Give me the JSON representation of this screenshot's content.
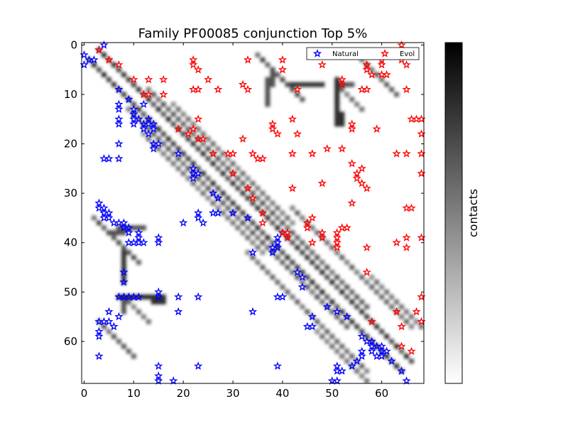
{
  "chart_data": {
    "type": "scatter",
    "title": "Family PF00085 conjunction Top 5%",
    "xlim": [
      -0.5,
      68.5
    ],
    "ylim": [
      68.5,
      -0.5
    ],
    "x_ticks": [
      0,
      10,
      20,
      30,
      40,
      50,
      60
    ],
    "y_ticks": [
      0,
      10,
      20,
      30,
      40,
      50,
      60
    ],
    "x_tick_labels": [
      "0",
      "10",
      "20",
      "30",
      "40",
      "50",
      "60"
    ],
    "y_tick_labels": [
      "0",
      "10",
      "20",
      "30",
      "40",
      "50",
      "60"
    ],
    "colorbar_label": "contacts",
    "colorbar_colors": [
      "#ffffff",
      "#000000"
    ],
    "legend_position": "top-right",
    "heatmap_bands": [
      {
        "i0": 1,
        "j0": 3,
        "len": 64,
        "intensity": 0.85
      },
      {
        "i0": 9,
        "j0": 13,
        "len": 45,
        "intensity": 0.7
      },
      {
        "i0": 12,
        "j0": 18,
        "len": 25,
        "intensity": 0.6
      },
      {
        "i0": 33,
        "j0": 42,
        "len": 25,
        "intensity": 0.65
      },
      {
        "i0": 2,
        "j0": 35,
        "len": 10,
        "intensity": 0.75
      },
      {
        "i0": 3,
        "j0": 56,
        "len": 8,
        "intensity": 0.7
      },
      {
        "i0": 47,
        "j0": 58,
        "len": 12,
        "intensity": 0.6
      },
      {
        "i0": 8,
        "j0": 51,
        "len": 6,
        "intensity": 0.6
      }
    ],
    "heatmap_rects": [
      {
        "i": 8,
        "j0": 42,
        "j1": 48,
        "intensity": 0.8
      },
      {
        "i": 8,
        "j0": 51,
        "j1": 54,
        "intensity": 0.7
      },
      {
        "i": 51,
        "j0": 7,
        "j1": 16,
        "intensity": 0.85
      },
      {
        "i": 52,
        "j0": 14,
        "j1": 16,
        "intensity": 0.85
      },
      {
        "i": 37,
        "j0": 7,
        "j1": 12,
        "intensity": 0.7
      },
      {
        "i": 38,
        "j0": 5,
        "j1": 8,
        "intensity": 0.7
      }
    ],
    "series": [
      {
        "name": "Natural",
        "color": "#0000ff",
        "points": [
          [
            0,
            2
          ],
          [
            1,
            3
          ],
          [
            0,
            4
          ],
          [
            3,
            1
          ],
          [
            2,
            3
          ],
          [
            4,
            0
          ],
          [
            7,
            9
          ],
          [
            7,
            12
          ],
          [
            7,
            13
          ],
          [
            7,
            15
          ],
          [
            7,
            16
          ],
          [
            7,
            20
          ],
          [
            7,
            23
          ],
          [
            4,
            23
          ],
          [
            5,
            23
          ],
          [
            9,
            11
          ],
          [
            10,
            13
          ],
          [
            10,
            14
          ],
          [
            10,
            15
          ],
          [
            10,
            16
          ],
          [
            11,
            15
          ],
          [
            12,
            12
          ],
          [
            12,
            16
          ],
          [
            12,
            17
          ],
          [
            13,
            15
          ],
          [
            13,
            16
          ],
          [
            14,
            16
          ],
          [
            14,
            17
          ],
          [
            13,
            18
          ],
          [
            14,
            20
          ],
          [
            14,
            21
          ],
          [
            15,
            20
          ],
          [
            19,
            22
          ],
          [
            22,
            25
          ],
          [
            22,
            26
          ],
          [
            22,
            27
          ],
          [
            23,
            26
          ],
          [
            26,
            30
          ],
          [
            27,
            31
          ],
          [
            23,
            34
          ],
          [
            23,
            35
          ],
          [
            24,
            36
          ],
          [
            26,
            34
          ],
          [
            27,
            34
          ],
          [
            30,
            34
          ],
          [
            33,
            35
          ],
          [
            34,
            42
          ],
          [
            20,
            36
          ],
          [
            3,
            32
          ],
          [
            3,
            33
          ],
          [
            4,
            33
          ],
          [
            4,
            34
          ],
          [
            4,
            35
          ],
          [
            5,
            34
          ],
          [
            5,
            35
          ],
          [
            6,
            36
          ],
          [
            7,
            36
          ],
          [
            8,
            36
          ],
          [
            8,
            37
          ],
          [
            9,
            37
          ],
          [
            9,
            38
          ],
          [
            9,
            40
          ],
          [
            10,
            40
          ],
          [
            11,
            38
          ],
          [
            11,
            39
          ],
          [
            11,
            40
          ],
          [
            12,
            40
          ],
          [
            15,
            39
          ],
          [
            15,
            40
          ],
          [
            38,
            41
          ],
          [
            38,
            42
          ],
          [
            39,
            39
          ],
          [
            39,
            40
          ],
          [
            39,
            41
          ],
          [
            40,
            38
          ],
          [
            8,
            46
          ],
          [
            8,
            48
          ],
          [
            8,
            51
          ],
          [
            9,
            51
          ],
          [
            10,
            51
          ],
          [
            11,
            51
          ],
          [
            15,
            50
          ],
          [
            15,
            51
          ],
          [
            7,
            51
          ],
          [
            19,
            51
          ],
          [
            23,
            51
          ],
          [
            19,
            54
          ],
          [
            3,
            56
          ],
          [
            4,
            56
          ],
          [
            5,
            54
          ],
          [
            5,
            56
          ],
          [
            6,
            57
          ],
          [
            7,
            55
          ],
          [
            3,
            58
          ],
          [
            3,
            59
          ],
          [
            3,
            63
          ],
          [
            34,
            54
          ],
          [
            39,
            51
          ],
          [
            40,
            51
          ],
          [
            43,
            46
          ],
          [
            44,
            47
          ],
          [
            44,
            49
          ],
          [
            45,
            57
          ],
          [
            46,
            55
          ],
          [
            46,
            57
          ],
          [
            49,
            53
          ],
          [
            51,
            54
          ],
          [
            53,
            55
          ],
          [
            56,
            59
          ],
          [
            57,
            60
          ],
          [
            58,
            60
          ],
          [
            58,
            61
          ],
          [
            58,
            62
          ],
          [
            59,
            61
          ],
          [
            59,
            63
          ],
          [
            60,
            61
          ],
          [
            60,
            62
          ],
          [
            60,
            63
          ],
          [
            61,
            62
          ],
          [
            62,
            64
          ],
          [
            64,
            66
          ],
          [
            15,
            65
          ],
          [
            15,
            67
          ],
          [
            15,
            68
          ],
          [
            18,
            68
          ],
          [
            23,
            65
          ],
          [
            39,
            65
          ],
          [
            50,
            68
          ],
          [
            51,
            65
          ],
          [
            51,
            66
          ],
          [
            51,
            68
          ],
          [
            52,
            66
          ],
          [
            54,
            65
          ],
          [
            55,
            64
          ],
          [
            56,
            62
          ],
          [
            56,
            63
          ],
          [
            65,
            68
          ]
        ]
      },
      {
        "name": "Evol",
        "color": "#ff0000",
        "points": [
          [
            3,
            1
          ],
          [
            5,
            3
          ],
          [
            7,
            4
          ],
          [
            10,
            7
          ],
          [
            13,
            7
          ],
          [
            12,
            10
          ],
          [
            13,
            10
          ],
          [
            16,
            7
          ],
          [
            16,
            10
          ],
          [
            22,
            3
          ],
          [
            22,
            4
          ],
          [
            22,
            9
          ],
          [
            23,
            9
          ],
          [
            23,
            5
          ],
          [
            25,
            7
          ],
          [
            23,
            15
          ],
          [
            19,
            17
          ],
          [
            22,
            17
          ],
          [
            21,
            18
          ],
          [
            23,
            19
          ],
          [
            24,
            19
          ],
          [
            27,
            9
          ],
          [
            33,
            3
          ],
          [
            26,
            22
          ],
          [
            29,
            22
          ],
          [
            30,
            22
          ],
          [
            30,
            26
          ],
          [
            32,
            8
          ],
          [
            33,
            9
          ],
          [
            32,
            19
          ],
          [
            34,
            22
          ],
          [
            35,
            23
          ],
          [
            36,
            23
          ],
          [
            33,
            29
          ],
          [
            34,
            31
          ],
          [
            36,
            34
          ],
          [
            36,
            36
          ],
          [
            38,
            16
          ],
          [
            38,
            17
          ],
          [
            39,
            18
          ],
          [
            40,
            3
          ],
          [
            40,
            5
          ],
          [
            40,
            38
          ],
          [
            41,
            38
          ],
          [
            41,
            39
          ],
          [
            43,
            9
          ],
          [
            42,
            15
          ],
          [
            42,
            22
          ],
          [
            42,
            29
          ],
          [
            43,
            18
          ],
          [
            46,
            22
          ],
          [
            45,
            36
          ],
          [
            45,
            37
          ],
          [
            46,
            35
          ],
          [
            46,
            40
          ],
          [
            48,
            2
          ],
          [
            48,
            4
          ],
          [
            48,
            28
          ],
          [
            48,
            38
          ],
          [
            48,
            39
          ],
          [
            49,
            21
          ],
          [
            51,
            38
          ],
          [
            51,
            39
          ],
          [
            51,
            40
          ],
          [
            51,
            41
          ],
          [
            52,
            7
          ],
          [
            52,
            8
          ],
          [
            52,
            21
          ],
          [
            52,
            37
          ],
          [
            53,
            37
          ],
          [
            54,
            16
          ],
          [
            54,
            17
          ],
          [
            54,
            24
          ],
          [
            54,
            32
          ],
          [
            55,
            26
          ],
          [
            55,
            27
          ],
          [
            56,
            9
          ],
          [
            56,
            25
          ],
          [
            56,
            28
          ],
          [
            57,
            9
          ],
          [
            57,
            29
          ],
          [
            57,
            5
          ],
          [
            57,
            4
          ],
          [
            57,
            41
          ],
          [
            57,
            46
          ],
          [
            58,
            6
          ],
          [
            58,
            56
          ],
          [
            60,
            3
          ],
          [
            60,
            4
          ],
          [
            60,
            6
          ],
          [
            61,
            6
          ],
          [
            63,
            22
          ],
          [
            63,
            40
          ],
          [
            63,
            54
          ],
          [
            64,
            57
          ],
          [
            64,
            61
          ],
          [
            65,
            4
          ],
          [
            65,
            9
          ],
          [
            65,
            22
          ],
          [
            65,
            33
          ],
          [
            65,
            39
          ],
          [
            65,
            41
          ],
          [
            66,
            15
          ],
          [
            66,
            33
          ],
          [
            66,
            62
          ],
          [
            67,
            15
          ],
          [
            67,
            54
          ],
          [
            68,
            15
          ],
          [
            68,
            18
          ],
          [
            68,
            22
          ],
          [
            68,
            26
          ],
          [
            68,
            39
          ],
          [
            68,
            51
          ],
          [
            68,
            56
          ],
          [
            64,
            3
          ],
          [
            64,
            0
          ],
          [
            59,
            17
          ]
        ]
      }
    ]
  }
}
